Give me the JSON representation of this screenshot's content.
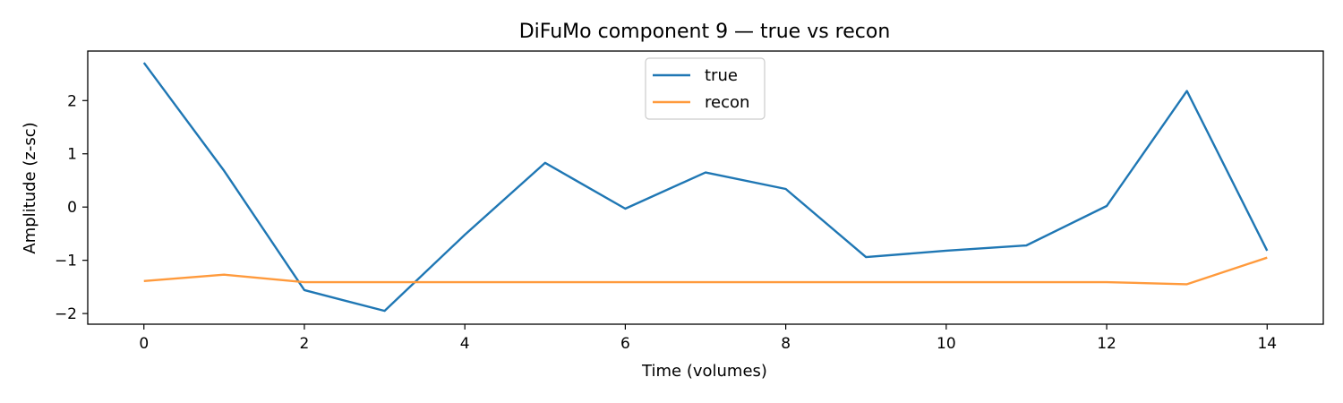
{
  "chart_data": {
    "type": "line",
    "title": "DiFuMo component 9 — true vs recon",
    "xlabel": "Time (volumes)",
    "ylabel": "Amplitude (z-sc)",
    "x": [
      0,
      1,
      2,
      3,
      4,
      5,
      6,
      7,
      8,
      9,
      10,
      11,
      12,
      13,
      14
    ],
    "xlim": [
      -0.7,
      14.7
    ],
    "ylim": [
      -2.2,
      2.93
    ],
    "xticks": [
      0,
      2,
      4,
      6,
      8,
      10,
      12,
      14
    ],
    "yticks": [
      -2,
      -1,
      0,
      1,
      2
    ],
    "xtick_labels": [
      "0",
      "2",
      "4",
      "6",
      "8",
      "10",
      "12",
      "14"
    ],
    "ytick_labels": [
      "−2",
      "−1",
      "0",
      "1",
      "2"
    ],
    "grid": false,
    "legend_position": "top-center",
    "series": [
      {
        "name": "true",
        "color": "#1f77b4",
        "values": [
          2.71,
          0.68,
          -1.56,
          -1.95,
          -0.52,
          0.83,
          -0.03,
          0.65,
          0.34,
          -0.94,
          -0.82,
          -0.72,
          0.02,
          2.18,
          -0.82
        ]
      },
      {
        "name": "recon",
        "color": "#ff9a3c",
        "values": [
          -1.39,
          -1.27,
          -1.41,
          -1.41,
          -1.41,
          -1.41,
          -1.41,
          -1.41,
          -1.41,
          -1.41,
          -1.41,
          -1.41,
          -1.41,
          -1.45,
          -0.95
        ]
      }
    ]
  }
}
